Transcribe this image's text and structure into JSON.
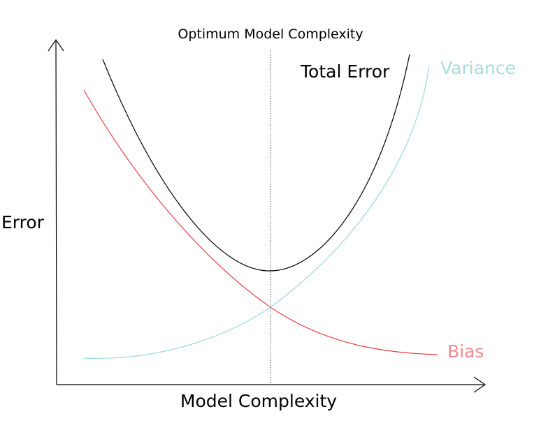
{
  "diagram": {
    "title": "Optimum Model Complexity",
    "x_axis_label": "Model Complexity",
    "y_axis_label": "Error",
    "curves": {
      "total_error": {
        "label": "Total Error",
        "color": "#000000",
        "label_color": "#000000"
      },
      "variance": {
        "label": "Variance",
        "color": "#9ad9dc",
        "label_color": "#a8dcde"
      },
      "bias": {
        "label": "Bias",
        "color": "#e8434b",
        "label_color": "#f08a90"
      }
    },
    "optimum_line_color": "#555555",
    "axis_color": "#000000"
  }
}
